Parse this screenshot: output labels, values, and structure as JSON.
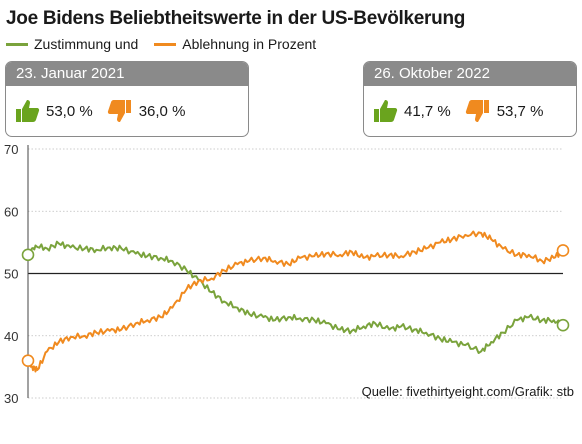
{
  "title": "Joe Bidens Beliebtheitswerte in der US-Bevölkerung",
  "legend": {
    "approve": "Zustimmung und",
    "disapprove": "Ablehnung in Prozent"
  },
  "colors": {
    "approve": "#7aa33c",
    "disapprove": "#f08a1f",
    "thumbs_up": "#6aa41e",
    "thumbs_down": "#f08a1f",
    "box_header": "#8a8a8a"
  },
  "boxes": {
    "start": {
      "date": "23. Januar 2021",
      "approve": "53,0 %",
      "disapprove": "36,0 %"
    },
    "end": {
      "date": "26. Oktober 2022",
      "approve": "41,7 %",
      "disapprove": "53,7 %"
    }
  },
  "source": "Quelle: fivethirtyeight.com/Grafik: stb",
  "chart_data": {
    "type": "line",
    "y_ticks": [
      "70",
      "60",
      "50",
      "40",
      "30"
    ],
    "ylim": [
      30,
      70
    ],
    "xlim": [
      "2021-01-23",
      "2022-10-26"
    ],
    "grid": "horizontal",
    "series": [
      {
        "name": "Zustimmung",
        "x": [
          "2021-01-23",
          "2021-02-01",
          "2021-02-15",
          "2021-03-01",
          "2021-03-15",
          "2021-04-01",
          "2021-04-15",
          "2021-05-01",
          "2021-05-15",
          "2021-06-01",
          "2021-06-15",
          "2021-07-01",
          "2021-07-15",
          "2021-08-01",
          "2021-08-15",
          "2021-08-31",
          "2021-09-15",
          "2021-10-01",
          "2021-10-15",
          "2021-11-01",
          "2021-11-15",
          "2021-12-01",
          "2021-12-15",
          "2022-01-01",
          "2022-01-15",
          "2022-02-01",
          "2022-02-15",
          "2022-03-01",
          "2022-03-15",
          "2022-04-01",
          "2022-04-15",
          "2022-05-01",
          "2022-05-15",
          "2022-06-01",
          "2022-06-15",
          "2022-07-01",
          "2022-07-20",
          "2022-08-01",
          "2022-08-15",
          "2022-09-01",
          "2022-09-15",
          "2022-10-01",
          "2022-10-15",
          "2022-10-26"
        ],
        "values": [
          53.0,
          54.5,
          54.0,
          54.8,
          54.2,
          54.0,
          53.8,
          54.2,
          54.0,
          53.2,
          52.8,
          52.5,
          52.0,
          50.5,
          49.0,
          47.0,
          45.5,
          44.5,
          43.5,
          43.0,
          42.5,
          43.0,
          42.8,
          42.5,
          42.0,
          41.0,
          40.8,
          41.5,
          42.0,
          41.0,
          41.5,
          41.0,
          40.5,
          39.5,
          39.0,
          38.5,
          37.5,
          39.0,
          40.5,
          42.5,
          43.0,
          42.5,
          42.5,
          41.7
        ]
      },
      {
        "name": "Ablehnung",
        "x": [
          "2021-01-23",
          "2021-01-28",
          "2021-02-03",
          "2021-02-15",
          "2021-03-01",
          "2021-03-15",
          "2021-04-01",
          "2021-04-15",
          "2021-05-01",
          "2021-05-15",
          "2021-06-01",
          "2021-06-15",
          "2021-07-01",
          "2021-07-15",
          "2021-08-01",
          "2021-08-15",
          "2021-08-31",
          "2021-09-15",
          "2021-10-01",
          "2021-10-15",
          "2021-11-01",
          "2021-11-15",
          "2021-12-01",
          "2021-12-15",
          "2022-01-01",
          "2022-01-15",
          "2022-02-01",
          "2022-02-15",
          "2022-03-01",
          "2022-03-15",
          "2022-04-01",
          "2022-04-15",
          "2022-05-01",
          "2022-05-15",
          "2022-06-01",
          "2022-06-15",
          "2022-07-01",
          "2022-07-20",
          "2022-08-01",
          "2022-08-15",
          "2022-09-01",
          "2022-09-15",
          "2022-10-01",
          "2022-10-15",
          "2022-10-26"
        ],
        "values": [
          36.0,
          35.0,
          34.5,
          37.5,
          39.0,
          39.8,
          40.0,
          40.5,
          40.8,
          41.0,
          42.0,
          42.5,
          43.0,
          44.5,
          47.5,
          48.8,
          49.2,
          50.5,
          51.5,
          52.0,
          52.5,
          52.0,
          51.5,
          52.5,
          52.8,
          53.2,
          53.0,
          53.5,
          52.5,
          52.8,
          53.0,
          52.8,
          53.5,
          54.0,
          55.0,
          55.5,
          56.2,
          56.5,
          55.5,
          54.0,
          53.0,
          53.0,
          52.0,
          52.5,
          53.7
        ]
      }
    ]
  }
}
